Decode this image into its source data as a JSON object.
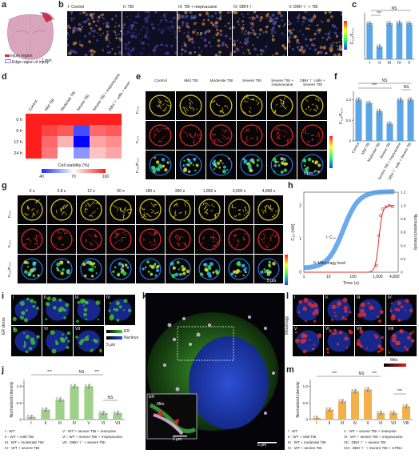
{
  "panels": {
    "a": {
      "label": "a",
      "legend": [
        "Injury region",
        "Edge region of injury"
      ],
      "scale": "1 mm",
      "colors": {
        "injury": "#c8324a",
        "edge": "#9b7fd6"
      }
    },
    "b": {
      "label": "b",
      "titles": [
        "I: Control",
        "II: TBI",
        "III: TBI + mepivacaine",
        "IV: DBH⁻/⁻",
        "V: DBH⁻/⁻ + TBI"
      ],
      "scale": "50 μm"
    },
    "c": {
      "label": "c",
      "ylabel": "F₅₂₈/F₆₃₄",
      "sig": [
        "***",
        "NS"
      ]
    },
    "d": {
      "label": "d",
      "label_cols": [
        "Control",
        "Mild TBI",
        "Moderate TBI",
        "Severe TBI",
        "Severe TBI + mepivacaine",
        "DBH⁻/⁻ cells + severe TBI"
      ],
      "rows": [
        "0 h",
        "6 h",
        "12 h",
        "24 h"
      ],
      "cbar_title": "Cell viability (%)",
      "cbar_ticks": [
        "40",
        "70",
        "100"
      ]
    },
    "e": {
      "label": "e",
      "cols": [
        "Control",
        "Mild TBI",
        "Moderate TBI",
        "Severe TBI",
        "Severe TBI + mepivacaine",
        "DBH⁻/⁻ cells + Severe TBI"
      ],
      "rows": [
        "F₅₂₈",
        "F₆₃₄",
        "F₅₂₈/F₆₃₄"
      ],
      "cbar_ticks": [
        "0.7",
        "1.3"
      ],
      "scale": "5 μm"
    },
    "f": {
      "label": "f",
      "ylabel": "F₅₂₈/F₆₃₄",
      "yticks": [
        "0",
        "0.5",
        "1.0"
      ],
      "sig": [
        "NS",
        "***",
        "NS"
      ],
      "xlabels": [
        "Control",
        "Mild TBI",
        "Moderate TBI",
        "Severe TBI",
        "Severe TBI + mepivacaine",
        "DBH⁻/⁻ cells + Severe TBI"
      ]
    },
    "g": {
      "label": "g",
      "times": [
        "0 s",
        "0.8 s",
        "12 s",
        "60 s",
        "180 s",
        "300 s",
        "1,800 s",
        "3,600 s",
        "4,800 s"
      ],
      "rows": [
        "F₅₂₈",
        "F₆₃₄",
        "F₅₂₈/F₆₃₄"
      ],
      "cbar_ticks": [
        "0.7",
        "1.3"
      ],
      "scale": "5 μm"
    },
    "h": {
      "label": "h",
      "ylabel": "C₂₄ (nM)",
      "y2label": "Normalized intensity",
      "xlabel": "Time (s)",
      "yticks": [
        "0",
        "1",
        "2"
      ],
      "y2ticks": [
        "0",
        "0.2",
        "0.4",
        "0.6",
        "0.8",
        "1.0",
        "1.2"
      ],
      "xticks": [
        "1",
        "10",
        "100",
        "1,000",
        "4,800"
      ],
      "curve1": "I: C₂₄",
      "curve2": "II: Mitophagy level"
    },
    "i": {
      "label": "i",
      "side": "ER stress",
      "roman": [
        "I",
        "II",
        "III",
        "IV",
        "V",
        "VI",
        "VII"
      ],
      "legend": [
        "ER",
        "Nucleus"
      ],
      "cbar": [
        "0",
        "1.0"
      ],
      "scale": "5 μm"
    },
    "j": {
      "label": "j",
      "ylabel": "Normalized intensity",
      "yticks": [
        "0",
        "0.5",
        "1.0"
      ],
      "xticks": [
        "I",
        "II",
        "III",
        "IV",
        "V",
        "VI",
        "VII"
      ],
      "sig": [
        "***",
        "NS",
        "***",
        "NS"
      ],
      "legend": [
        "I : WT",
        "II : WT + mild TBI",
        "III : WT + moderate TBI",
        "IV : WT + severe TBI",
        "V : WT + severe TBI + reserpine",
        "VI : WT + severe TBI + mepivacaine",
        "VII : DBH⁻/⁻ + severe TBI"
      ]
    },
    "k": {
      "label": "k",
      "inset": [
        "ER",
        "Mito"
      ],
      "inset_scale": "1 μm",
      "scale": "5 μm"
    },
    "l": {
      "label": "l",
      "side": "Mitophagy",
      "roman": [
        "I",
        "II",
        "III",
        "IV",
        "V",
        "VI",
        "VII",
        "VIII"
      ],
      "cbar_title": "Mito",
      "cbar": [
        "0",
        "1.0"
      ],
      "scale": "5 μm"
    },
    "m": {
      "label": "m",
      "ylabel": "Normalized intensity",
      "yticks": [
        "0",
        "0.5",
        "1.0"
      ],
      "xticks": [
        "I",
        "II",
        "III",
        "IV",
        "V",
        "VI",
        "VII",
        "VIII"
      ],
      "sig": [
        "***",
        "NS",
        "***",
        "***"
      ],
      "legend": [
        "I : WT",
        "II : WT + mild TBI",
        "III : WT + moderate TBI",
        "IV : WT + severe TBI",
        "V : WT + severe TBI + reserpine",
        "VI : WT + severe TBI + mepivacaine",
        "VII : DBH⁻/⁻ + severe TBI",
        "VIII : DBH⁻/⁻ + Severe TBI + 4-PBA"
      ]
    }
  },
  "chart_data": [
    {
      "panel": "c",
      "type": "bar",
      "categories": [
        "I",
        "II",
        "III",
        "IV",
        "V"
      ],
      "values": [
        0.62,
        0.22,
        0.62,
        0.63,
        0.62
      ],
      "ylabel": "F528/F634",
      "ylim": [
        0,
        0.8
      ]
    },
    {
      "panel": "d",
      "type": "heatmap",
      "rows": [
        "0 h",
        "6 h",
        "12 h",
        "24 h"
      ],
      "columns": [
        "Control",
        "Mild TBI",
        "Moderate TBI",
        "Severe TBI",
        "Severe TBI + mepivacaine",
        "DBH-/- cells + severe TBI"
      ],
      "values": [
        [
          100,
          100,
          100,
          100,
          100,
          100
        ],
        [
          100,
          95,
          92,
          45,
          90,
          92
        ],
        [
          100,
          90,
          80,
          35,
          82,
          85
        ],
        [
          100,
          88,
          70,
          55,
          78,
          82
        ]
      ],
      "colorbar": "Cell viability (%)",
      "crange": [
        40,
        100
      ]
    },
    {
      "panel": "f",
      "type": "bar",
      "categories": [
        "Control",
        "Mild TBI",
        "Moderate TBI",
        "Severe TBI",
        "Severe TBI + mepivacaine",
        "DBH-/- cells + Severe TBI"
      ],
      "values": [
        1.0,
        0.92,
        0.72,
        0.42,
        1.0,
        1.0
      ],
      "ylabel": "F528/F634",
      "ylim": [
        0,
        1.2
      ]
    },
    {
      "panel": "h",
      "type": "line",
      "x": [
        1,
        10,
        100,
        1000,
        4800
      ],
      "series": [
        {
          "name": "I: C24",
          "values": [
            0.0,
            0.5,
            1.8,
            2.3,
            2.3
          ]
        },
        {
          "name": "II: Mitophagy level",
          "values": [
            0.0,
            0.0,
            0.0,
            0.9,
            1.0
          ]
        }
      ],
      "xlabel": "Time (s)",
      "ylabel": "C24 (nM)"
    },
    {
      "panel": "j",
      "type": "bar",
      "categories": [
        "I",
        "II",
        "III",
        "IV",
        "V",
        "VI",
        "VII"
      ],
      "values": [
        0.08,
        0.3,
        0.6,
        1.0,
        1.0,
        0.2,
        0.2
      ],
      "ylim": [
        0,
        1.2
      ]
    },
    {
      "panel": "m",
      "type": "bar",
      "categories": [
        "I",
        "II",
        "III",
        "IV",
        "V",
        "VI",
        "VII",
        "VIII"
      ],
      "values": [
        0.05,
        0.3,
        0.55,
        0.85,
        0.9,
        0.2,
        0.2,
        0.4
      ],
      "ylim": [
        0,
        1.2
      ]
    }
  ]
}
